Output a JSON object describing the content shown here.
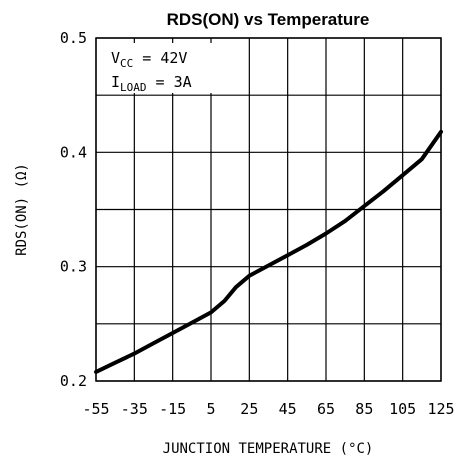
{
  "chart_data": {
    "type": "line",
    "title": "RDS(ON) vs Temperature",
    "xlabel": "JUNCTION TEMPERATURE (°C)",
    "ylabel": "RDS(ON) (Ω)",
    "xlim": [
      -55,
      125
    ],
    "ylim": [
      0.2,
      0.5
    ],
    "x_ticks": [
      -55,
      -35,
      -15,
      5,
      25,
      45,
      65,
      85,
      105,
      125
    ],
    "x_tick_labels": [
      "-55",
      "-35",
      "-15",
      "5",
      "25",
      "45",
      "65",
      "85",
      "105",
      "125"
    ],
    "y_ticks": [
      0.2,
      0.25,
      0.3,
      0.35,
      0.4,
      0.45,
      0.5
    ],
    "y_tick_labels": [
      "0.2",
      "",
      "0.3",
      "",
      "0.4",
      "",
      "0.5"
    ],
    "grid": true,
    "annotation": {
      "line1_main": "V",
      "line1_sub": "CC",
      "line1_rest": " = 42V",
      "line2_main": "I",
      "line2_sub": "LOAD",
      "line2_rest": " = 3A"
    },
    "series": [
      {
        "x": [
          -55,
          -45,
          -35,
          -25,
          -15,
          -5,
          5,
          12,
          18,
          25,
          35,
          45,
          55,
          65,
          75,
          85,
          95,
          105,
          115,
          125
        ],
        "y": [
          0.208,
          0.216,
          0.224,
          0.233,
          0.242,
          0.251,
          0.26,
          0.27,
          0.282,
          0.292,
          0.301,
          0.31,
          0.319,
          0.329,
          0.34,
          0.353,
          0.366,
          0.38,
          0.394,
          0.418
        ]
      }
    ]
  }
}
